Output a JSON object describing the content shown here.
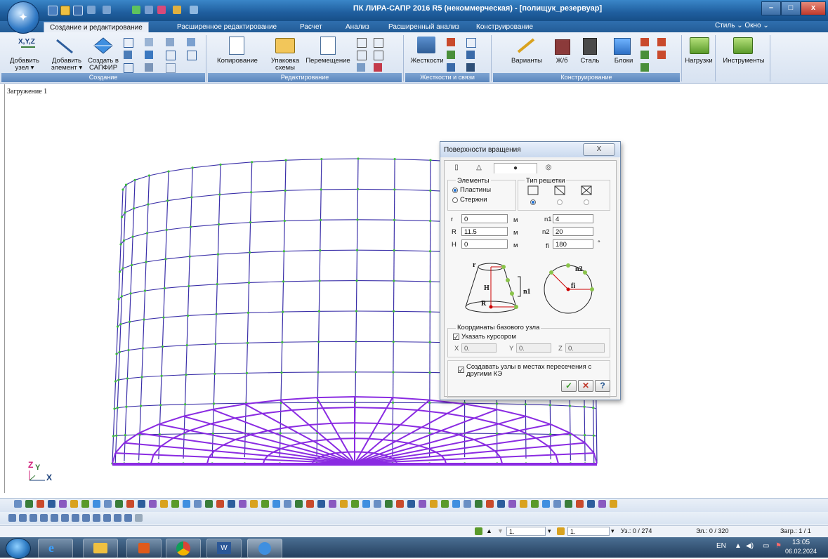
{
  "window": {
    "title": "ПК ЛИРА-САПР  2016 R5 (некоммерческая) - [полищук_резервуар]",
    "controls": [
      "–",
      "□",
      "x"
    ]
  },
  "ribbon": {
    "tabs": [
      "Создание и редактирование",
      "Расширенное редактирование",
      "Расчет",
      "Анализ",
      "Расширенный анализ",
      "Конструирование"
    ],
    "active_tab": "Создание и редактирование",
    "right_menu": "Стиль ⌄ Окно ⌄",
    "groups": {
      "create": {
        "label": "Создание",
        "add_node": "Добавить узел ▾",
        "add_element": "Добавить элемент ▾",
        "create_in_sapfir": "Создать в САПФИР"
      },
      "edit": {
        "label": "Редактирование",
        "copy": "Копирование",
        "pack_scheme": "Упаковка схемы",
        "move": "Перемещение"
      },
      "stiffness": {
        "label": "Жесткости и связи",
        "stiffness": "Жесткости"
      },
      "design": {
        "label": "Конструирование",
        "variants": "Варианты",
        "rc": "Ж/б",
        "steel": "Сталь",
        "blocks": "Блоки"
      },
      "loads": "Нагрузки",
      "tools": "Инструменты"
    }
  },
  "canvas": {
    "case_label": "Загружение 1",
    "axis_z": "Z",
    "axis_y": "Y",
    "axis_x": "X"
  },
  "dialog": {
    "title": "Поверхности вращения",
    "close": "X",
    "elements_label": "Элементы",
    "plates": "Пластины",
    "rods": "Стержни",
    "mesh_type_label": "Тип решетки",
    "fields": {
      "r_label": "r",
      "r_value": "0",
      "r_unit": "м",
      "R_label": "R",
      "R_value": "11.5",
      "R_unit": "м",
      "H_label": "H",
      "H_value": "0",
      "H_unit": "м",
      "n1_label": "n1",
      "n1_value": "4",
      "n2_label": "n2",
      "n2_value": "20",
      "fi_label": "fi",
      "fi_value": "180",
      "fi_unit": "°"
    },
    "fig": {
      "r": "r",
      "H": "H",
      "R": "R",
      "n1": "n1",
      "n2": "n2",
      "fi": "fi"
    },
    "base_node_label": "Координаты базового узла",
    "point_with_cursor": "Указать курсором",
    "coord": {
      "x_label": "X",
      "x_value": "0.",
      "y_label": "Y",
      "y_value": "0.",
      "z_label": "Z",
      "z_value": "0."
    },
    "create_nodes": "Создавать узлы в местах пересечения с другими КЭ",
    "ok": "✓",
    "cancel": "✕",
    "help": "?"
  },
  "status": {
    "field1": "1.",
    "field2": "1.",
    "nodes": "Уз.: 0 / 274",
    "elements": "Эл.: 0 / 320",
    "loadcase": "Загр.: 1 / 1"
  },
  "taskbar": {
    "lang": "EN",
    "time": "13:05",
    "date": "06.02.2024"
  }
}
